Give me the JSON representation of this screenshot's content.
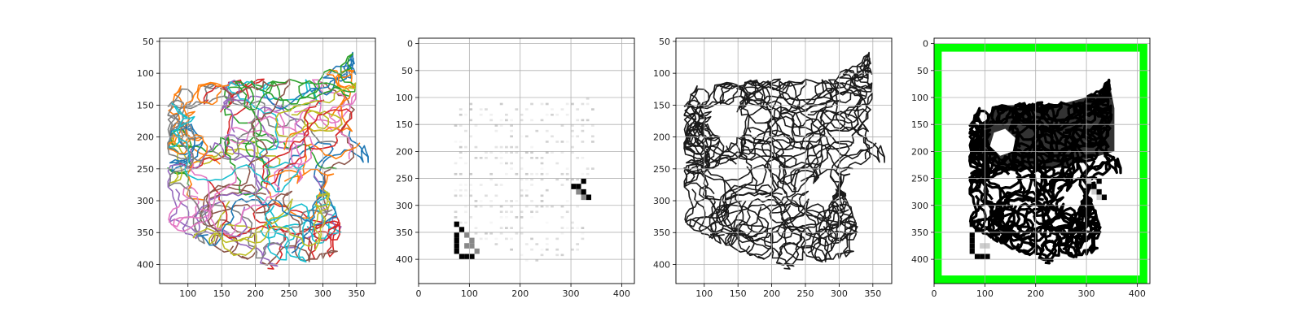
{
  "colors": {
    "background": "#ffffff",
    "axes_edge": "#000000",
    "grid": "#b0b0b0",
    "frame": "#00ff00",
    "ink": "#000000",
    "tab10": [
      "#1f77b4",
      "#ff7f0e",
      "#2ca02c",
      "#d62728",
      "#9467bd",
      "#8c564b",
      "#e377c2",
      "#7f7f7f",
      "#bcbd22",
      "#17becf"
    ]
  },
  "chart_data": [
    {
      "type": "line",
      "title": "",
      "xlabel": "",
      "ylabel": "",
      "xlim": [
        58,
        378
      ],
      "ylim": [
        430,
        45
      ],
      "y_inverted": true,
      "xticks": [
        100,
        150,
        200,
        250,
        300,
        350
      ],
      "yticks": [
        50,
        100,
        150,
        200,
        250,
        300,
        350,
        400
      ],
      "grid": true,
      "style": "many colored random-walk trajectories (tab10 palette)",
      "region_outline": [
        [
          70,
          330
        ],
        [
          70,
          150
        ],
        [
          90,
          115
        ],
        [
          160,
          110
        ],
        [
          250,
          108
        ],
        [
          290,
          110
        ],
        [
          320,
          80
        ],
        [
          345,
          62
        ],
        [
          350,
          100
        ],
        [
          350,
          200
        ],
        [
          370,
          215
        ],
        [
          372,
          240
        ],
        [
          340,
          245
        ],
        [
          320,
          260
        ],
        [
          300,
          280
        ],
        [
          280,
          260
        ],
        [
          250,
          290
        ],
        [
          280,
          310
        ],
        [
          300,
          270
        ],
        [
          315,
          300
        ],
        [
          330,
          350
        ],
        [
          320,
          385
        ],
        [
          290,
          395
        ],
        [
          250,
          398
        ],
        [
          225,
          412
        ],
        [
          200,
          395
        ],
        [
          160,
          385
        ],
        [
          130,
          370
        ],
        [
          100,
          360
        ],
        [
          80,
          345
        ]
      ],
      "hole_outline": [
        [
          105,
          185
        ],
        [
          112,
          160
        ],
        [
          135,
          150
        ],
        [
          158,
          170
        ],
        [
          155,
          195
        ],
        [
          130,
          205
        ]
      ]
    },
    {
      "type": "heatmap",
      "title": "",
      "xlabel": "",
      "ylabel": "",
      "xlim": [
        0,
        425
      ],
      "ylim": [
        445,
        -10
      ],
      "y_inverted": true,
      "xticks": [
        0,
        100,
        200,
        300,
        400
      ],
      "yticks": [
        0,
        50,
        100,
        150,
        200,
        250,
        300,
        350,
        400
      ],
      "grid": true,
      "style": "grayscale occupancy grid, mostly white with sparse light-gray marks",
      "dark_cells": [
        [
          70,
          380
        ],
        [
          70,
          370
        ],
        [
          70,
          360
        ],
        [
          70,
          350
        ],
        [
          80,
          390
        ],
        [
          90,
          390
        ],
        [
          100,
          390
        ],
        [
          80,
          340
        ],
        [
          70,
          330
        ],
        [
          300,
          260
        ],
        [
          310,
          260
        ],
        [
          320,
          270
        ],
        [
          330,
          280
        ],
        [
          320,
          250
        ]
      ]
    },
    {
      "type": "line",
      "title": "",
      "xlabel": "",
      "ylabel": "",
      "xlim": [
        58,
        378
      ],
      "ylim": [
        430,
        45
      ],
      "y_inverted": true,
      "xticks": [
        100,
        150,
        200,
        250,
        300,
        350
      ],
      "yticks": [
        50,
        100,
        150,
        200,
        250,
        300,
        350,
        400
      ],
      "grid": true,
      "style": "same trajectories drawn in black"
    },
    {
      "type": "heatmap",
      "title": "",
      "xlabel": "",
      "ylabel": "",
      "xlim": [
        0,
        425
      ],
      "ylim": [
        445,
        -10
      ],
      "y_inverted": true,
      "xticks": [
        0,
        100,
        200,
        300,
        400
      ],
      "yticks": [
        0,
        50,
        100,
        150,
        200,
        250,
        300,
        350,
        400
      ],
      "grid": true,
      "style": "binary mask with green border frame",
      "frame": [
        0,
        0,
        420,
        445
      ],
      "frame_thickness": 15
    }
  ]
}
